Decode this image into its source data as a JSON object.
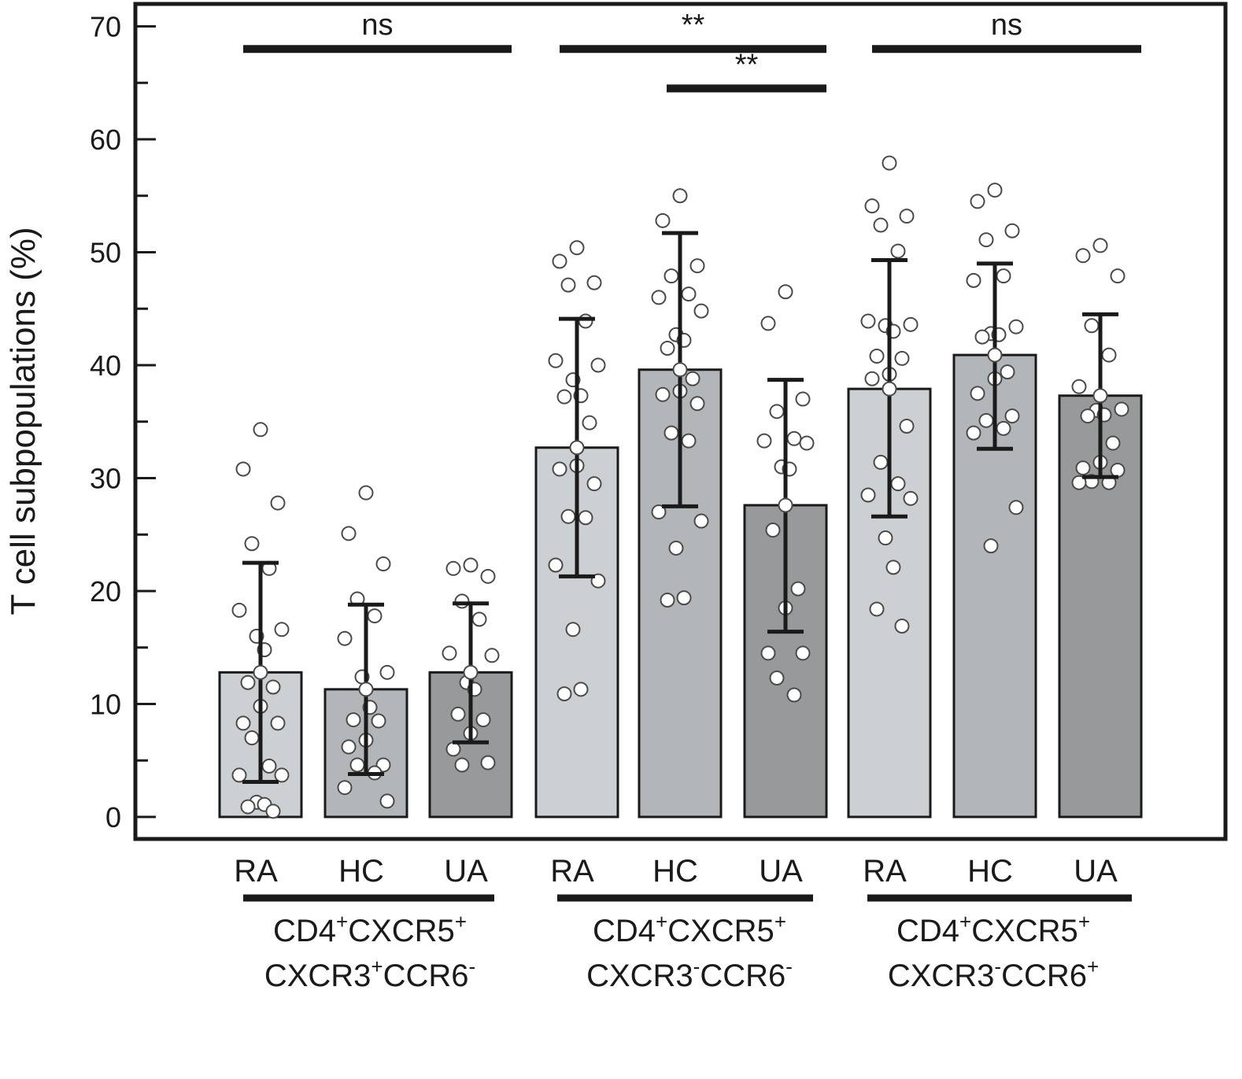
{
  "chart_data": {
    "type": "bar",
    "ylabel": "T cell subpopulations (%)",
    "ylim": [
      0,
      70
    ],
    "yticks": [
      0,
      10,
      20,
      30,
      40,
      50,
      60,
      70
    ],
    "minor_ytick_step": 5,
    "legend": "none",
    "grid": false,
    "colors": {
      "RA": "#cdd0d2",
      "HC": "#b3b6b8",
      "UA": "#98999b"
    },
    "groups": [
      {
        "name": "CD4+CXCR5+ CXCR3+CCR6-",
        "label_line1": [
          "CD4",
          "+",
          "CXCR5",
          "+"
        ],
        "label_line2": [
          "CXCR3",
          "+",
          "CCR6",
          "-"
        ],
        "categories": [
          {
            "label": "RA",
            "mean": 12.8,
            "error_low": 3.1,
            "error_high": 22.5,
            "points": [
              34.3,
              30.8,
              27.8,
              24.2,
              22.0,
              18.3,
              16.6,
              16.0,
              14.8,
              11.9,
              11.5,
              9.8,
              8.3,
              8.3,
              7.0,
              4.5,
              3.7,
              3.7,
              1.3,
              1.1,
              0.9,
              0.5
            ]
          },
          {
            "label": "HC",
            "mean": 11.3,
            "error_low": 3.8,
            "error_high": 18.8,
            "points": [
              28.7,
              25.1,
              22.4,
              19.3,
              17.8,
              15.8,
              12.8,
              12.4,
              9.7,
              8.6,
              8.5,
              6.8,
              6.2,
              4.6,
              4.6,
              3.9,
              2.6,
              1.4
            ]
          },
          {
            "label": "UA",
            "mean": 12.8,
            "error_low": 6.6,
            "error_high": 18.9,
            "points": [
              22.3,
              22.0,
              21.3,
              19.1,
              17.5,
              14.5,
              14.3,
              11.9,
              11.3,
              9.1,
              8.6,
              7.4,
              6.0,
              4.8,
              4.6
            ]
          }
        ]
      },
      {
        "name": "CD4+CXCR5+ CXCR3-CCR6-",
        "label_line1": [
          "CD4",
          "+",
          "CXCR5",
          "+"
        ],
        "label_line2": [
          "CXCR3",
          "-",
          "CCR6",
          "-"
        ],
        "categories": [
          {
            "label": "RA",
            "mean": 32.7,
            "error_low": 21.3,
            "error_high": 44.1,
            "points": [
              50.4,
              49.2,
              47.3,
              47.1,
              43.9,
              40.4,
              40.0,
              38.7,
              37.3,
              37.2,
              34.9,
              31.1,
              30.8,
              29.5,
              26.6,
              26.5,
              22.3,
              20.9,
              16.6,
              11.3,
              10.9
            ]
          },
          {
            "label": "HC",
            "mean": 39.6,
            "error_low": 27.5,
            "error_high": 51.7,
            "points": [
              55.0,
              52.8,
              48.8,
              47.9,
              46.3,
              46.0,
              44.8,
              42.7,
              42.2,
              41.5,
              38.8,
              37.7,
              37.4,
              36.6,
              34.0,
              33.3,
              27.0,
              26.2,
              23.8,
              19.4,
              19.2
            ]
          },
          {
            "label": "UA",
            "mean": 27.6,
            "error_low": 16.4,
            "error_high": 38.7,
            "points": [
              46.5,
              43.7,
              37.0,
              35.9,
              33.5,
              33.3,
              33.1,
              31.0,
              30.8,
              25.4,
              20.2,
              18.5,
              14.5,
              14.5,
              12.3,
              10.8
            ]
          }
        ]
      },
      {
        "name": "CD4+CXCR5+ CXCR3-CCR6+",
        "label_line1": [
          "CD4",
          "+",
          "CXCR5",
          "+"
        ],
        "label_line2": [
          "CXCR3",
          "-",
          "CCR6",
          "+"
        ],
        "categories": [
          {
            "label": "RA",
            "mean": 37.9,
            "error_low": 26.6,
            "error_high": 49.3,
            "points": [
              57.9,
              54.1,
              53.2,
              52.4,
              50.1,
              43.9,
              43.6,
              43.5,
              43.0,
              40.8,
              40.6,
              39.2,
              38.8,
              34.6,
              31.4,
              29.5,
              28.5,
              28.2,
              24.7,
              22.1,
              18.4,
              16.9
            ]
          },
          {
            "label": "HC",
            "mean": 40.9,
            "error_low": 32.6,
            "error_high": 49.0,
            "points": [
              55.5,
              54.5,
              51.9,
              51.1,
              47.9,
              47.5,
              43.4,
              42.8,
              42.7,
              42.5,
              39.4,
              38.8,
              37.5,
              35.5,
              35.1,
              34.4,
              34.0,
              27.4,
              24.0
            ]
          },
          {
            "label": "UA",
            "mean": 37.3,
            "error_low": 30.1,
            "error_high": 44.5,
            "points": [
              50.6,
              49.7,
              47.9,
              43.5,
              40.9,
              38.1,
              36.1,
              36.0,
              35.6,
              35.5,
              33.1,
              31.4,
              30.9,
              30.7,
              29.7,
              29.6,
              29.6
            ]
          }
        ]
      }
    ],
    "significance": [
      {
        "group": 0,
        "from": 0,
        "to": 2,
        "level": 68,
        "label": "ns",
        "style": "text"
      },
      {
        "group": 1,
        "from": 0,
        "to": 2,
        "level": 68,
        "label": "**",
        "style": "stars"
      },
      {
        "group": 1,
        "from": 1,
        "to": 2,
        "level": 64.5,
        "label": "**",
        "style": "stars"
      },
      {
        "group": 2,
        "from": 0,
        "to": 2,
        "level": 68,
        "label": "ns",
        "style": "text"
      }
    ]
  }
}
